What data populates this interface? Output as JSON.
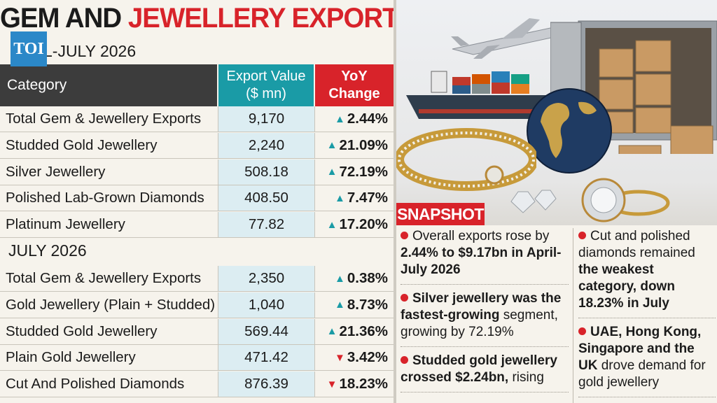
{
  "headline": {
    "part1": "GEM AND ",
    "part2": "JEWELLERY EXPORTS"
  },
  "brand": {
    "logo_text": "TOI",
    "blue": "#2b88c8"
  },
  "colors": {
    "red": "#d8232a",
    "teal": "#1a9ba6",
    "dark": "#3c3c3c",
    "value_bg": "#dcedf2"
  },
  "table": {
    "headers": {
      "category": "Category",
      "value": "Export Value ($ mn)",
      "yoy": "YoY Change"
    },
    "section1": {
      "title": "L-JULY 2026",
      "rows": [
        {
          "category": "Total Gem & Jewellery Exports",
          "value": "9,170",
          "change": "2.44%",
          "dir": "up"
        },
        {
          "category": "Studded Gold Jewellery",
          "value": "2,240",
          "change": "21.09%",
          "dir": "up"
        },
        {
          "category": "Silver Jewellery",
          "value": "508.18",
          "change": "72.19%",
          "dir": "up"
        },
        {
          "category": "Polished Lab-Grown Diamonds",
          "value": "408.50",
          "change": "7.47%",
          "dir": "up"
        },
        {
          "category": "Platinum Jewellery",
          "value": "77.82",
          "change": "17.20%",
          "dir": "up"
        }
      ]
    },
    "section2": {
      "title": "JULY 2026",
      "rows": [
        {
          "category": "Total Gem & Jewellery Exports",
          "value": "2,350",
          "change": "0.38%",
          "dir": "up"
        },
        {
          "category": "Gold Jewellery (Plain + Studded)",
          "value": "1,040",
          "change": "8.73%",
          "dir": "up"
        },
        {
          "category": "Studded Gold Jewellery",
          "value": "569.44",
          "change": "21.36%",
          "dir": "up"
        },
        {
          "category": "Plain Gold Jewellery",
          "value": "471.42",
          "change": "3.42%",
          "dir": "down"
        },
        {
          "category": "Cut And Polished Diamonds",
          "value": "876.39",
          "change": "18.23%",
          "dir": "down"
        }
      ]
    }
  },
  "snapshot": {
    "label": "SNAPSHOT",
    "col_a": [
      {
        "pre": "Overall exports rose by ",
        "bold": "2.44% to $9.17bn in April-July 2026",
        "post": ""
      },
      {
        "pre": "",
        "bold": "Silver jewellery was the fastest-growing",
        "post": " segment, growing by 72.19%"
      },
      {
        "pre": "",
        "bold": "Studded gold jewellery crossed $2.24bn,",
        "post": " rising"
      }
    ],
    "col_b": [
      {
        "pre": "Cut and polished diamonds remained ",
        "bold": "the weakest category, down 18.23% in July",
        "post": ""
      },
      {
        "pre": "",
        "bold": "UAE, Hong Kong, Singapore and the UK",
        "post": " drove demand for gold jewellery"
      }
    ]
  }
}
